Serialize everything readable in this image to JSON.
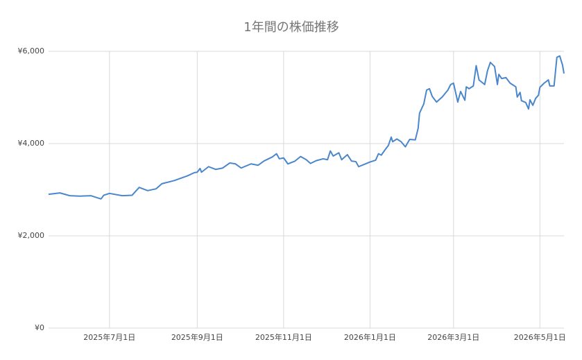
{
  "chart_data": {
    "type": "line",
    "title": "1年間の株価推移",
    "x": [
      "2025-05-19",
      "2025-05-27",
      "2025-06-03",
      "2025-06-10",
      "2025-06-18",
      "2025-06-25",
      "2025-06-27",
      "2025-07-01",
      "2025-07-10",
      "2025-07-17",
      "2025-07-22",
      "2025-07-28",
      "2025-08-03",
      "2025-08-07",
      "2025-08-16",
      "2025-08-25",
      "2025-08-30",
      "2025-09-01",
      "2025-09-03",
      "2025-09-04",
      "2025-09-09",
      "2025-09-14",
      "2025-09-19",
      "2025-09-24",
      "2025-09-28",
      "2025-10-02",
      "2025-10-09",
      "2025-10-14",
      "2025-10-18",
      "2025-10-24",
      "2025-10-27",
      "2025-10-29",
      "2025-11-01",
      "2025-11-04",
      "2025-11-09",
      "2025-11-13",
      "2025-11-17",
      "2025-11-20",
      "2025-11-24",
      "2025-11-29",
      "2025-12-02",
      "2025-12-04",
      "2025-12-06",
      "2025-12-10",
      "2025-12-12",
      "2025-12-16",
      "2025-12-19",
      "2025-12-22",
      "2025-12-24",
      "2025-12-28",
      "2026-01-01",
      "2026-01-05",
      "2026-01-07",
      "2026-01-09",
      "2026-01-12",
      "2026-01-14",
      "2026-01-16",
      "2026-01-17",
      "2026-01-20",
      "2026-01-23",
      "2026-01-26",
      "2026-01-29",
      "2026-02-02",
      "2026-02-04",
      "2026-02-05",
      "2026-02-08",
      "2026-02-10",
      "2026-02-12",
      "2026-02-14",
      "2026-02-17",
      "2026-02-21",
      "2026-02-25",
      "2026-02-27",
      "2026-03-01",
      "2026-03-04",
      "2026-03-06",
      "2026-03-09",
      "2026-03-10",
      "2026-03-12",
      "2026-03-15",
      "2026-03-17",
      "2026-03-19",
      "2026-03-23",
      "2026-03-25",
      "2026-03-27",
      "2026-03-30",
      "2026-04-01",
      "2026-04-02",
      "2026-04-04",
      "2026-04-07",
      "2026-04-10",
      "2026-04-14",
      "2026-04-15",
      "2026-04-17",
      "2026-04-18",
      "2026-04-21",
      "2026-04-23",
      "2026-04-24",
      "2026-04-26",
      "2026-04-28",
      "2026-04-30",
      "2026-05-01",
      "2026-05-04",
      "2026-05-07",
      "2026-05-08",
      "2026-05-11",
      "2026-05-13",
      "2026-05-15",
      "2026-05-17",
      "2026-05-18"
    ],
    "values": [
      2900,
      2930,
      2870,
      2860,
      2870,
      2800,
      2880,
      2920,
      2870,
      2880,
      3050,
      2980,
      3020,
      3130,
      3200,
      3300,
      3370,
      3380,
      3460,
      3380,
      3500,
      3440,
      3470,
      3580,
      3560,
      3470,
      3560,
      3530,
      3620,
      3710,
      3780,
      3670,
      3690,
      3560,
      3620,
      3720,
      3650,
      3570,
      3630,
      3670,
      3650,
      3840,
      3730,
      3800,
      3650,
      3760,
      3620,
      3610,
      3500,
      3550,
      3600,
      3640,
      3780,
      3750,
      3880,
      3960,
      4140,
      4040,
      4100,
      4040,
      3930,
      4090,
      4080,
      4330,
      4660,
      4860,
      5160,
      5190,
      5020,
      4900,
      5010,
      5160,
      5280,
      5310,
      4900,
      5130,
      4940,
      5230,
      5190,
      5250,
      5690,
      5380,
      5280,
      5580,
      5760,
      5670,
      5280,
      5500,
      5410,
      5430,
      5310,
      5230,
      5010,
      5110,
      4930,
      4890,
      4750,
      4950,
      4830,
      4980,
      5050,
      5220,
      5310,
      5380,
      5250,
      5250,
      5870,
      5900,
      5700,
      5520
    ],
    "color": "#4a86cb",
    "xlim": [
      "2025-05-19",
      "2026-05-18"
    ],
    "xticks": [
      {
        "value": "2025-07-01",
        "label": "2025年7月1日"
      },
      {
        "value": "2025-09-01",
        "label": "2025年9月1日"
      },
      {
        "value": "2025-11-01",
        "label": "2025年11月1日"
      },
      {
        "value": "2026-01-01",
        "label": "2026年1月1日"
      },
      {
        "value": "2026-03-01",
        "label": "2026年3月1日"
      },
      {
        "value": "2026-05-01",
        "label": "2026年5月1日"
      }
    ],
    "ylim": [
      0,
      6000
    ],
    "yticks": [
      {
        "value": 0,
        "label": "¥0"
      },
      {
        "value": 2000,
        "label": "¥2,000"
      },
      {
        "value": 4000,
        "label": "¥4,000"
      },
      {
        "value": 6000,
        "label": "¥6,000"
      }
    ],
    "grid": true
  }
}
